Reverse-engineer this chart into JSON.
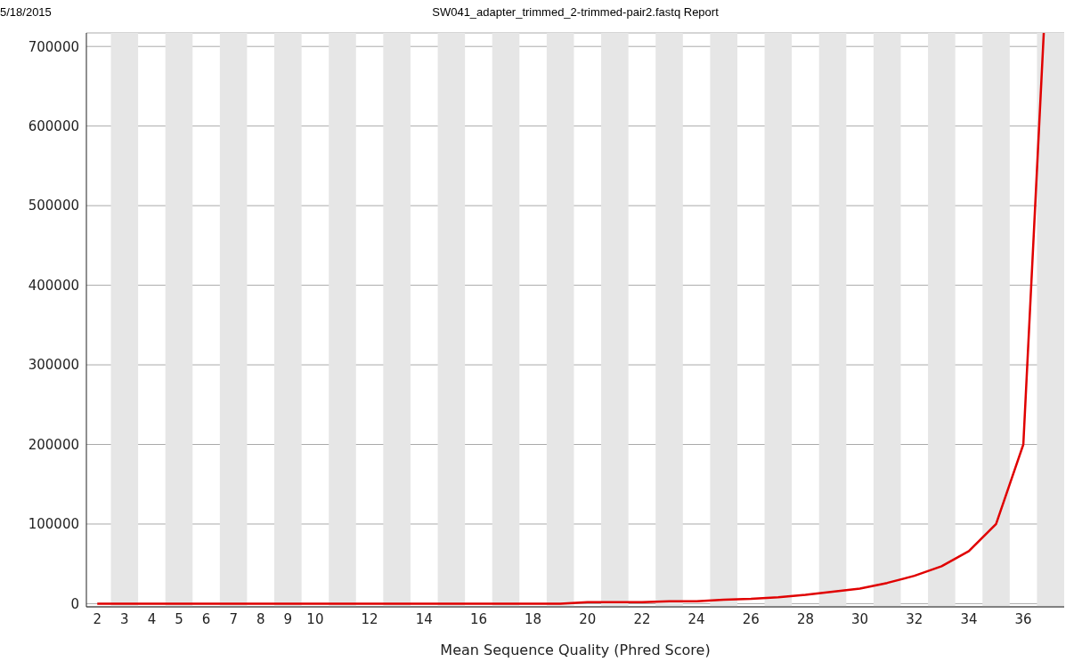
{
  "chart_data": {
    "type": "line",
    "title": "SW041_adapter_trimmed_2-trimmed-pair2.fastq Report",
    "xlabel": "Mean Sequence Quality (Phred Score)",
    "annotations": [
      "5/18/2015"
    ],
    "x": [
      2,
      3,
      4,
      5,
      6,
      7,
      8,
      9,
      10,
      11,
      12,
      13,
      14,
      15,
      16,
      17,
      18,
      19,
      20,
      21,
      22,
      23,
      24,
      25,
      26,
      27,
      28,
      29,
      30,
      31,
      32,
      33,
      34,
      35,
      36,
      36.75
    ],
    "series": [
      {
        "color": "#e00000",
        "values": [
          0,
          0,
          0,
          0,
          0,
          0,
          0,
          0,
          0,
          0,
          0,
          0,
          0,
          0,
          0,
          0,
          0,
          0,
          2000,
          2000,
          2000,
          3000,
          3000,
          5000,
          6000,
          8000,
          11000,
          15000,
          19000,
          26000,
          35000,
          47000,
          66000,
          100000,
          200000,
          717000
        ]
      }
    ],
    "xlim": [
      1.6,
      37.5
    ],
    "xticks": [
      2,
      3,
      4,
      5,
      6,
      7,
      8,
      9,
      10,
      12,
      14,
      16,
      18,
      20,
      22,
      24,
      26,
      28,
      30,
      32,
      34,
      36
    ],
    "ylim": [
      -4000,
      717000
    ],
    "yticks": [
      0,
      100000,
      200000,
      300000,
      400000,
      500000,
      600000,
      700000
    ],
    "grid": "y",
    "legend": false,
    "marker": "none",
    "line_style": "solid",
    "bands": [
      {
        "axis": "x",
        "from": 2.5,
        "to": 3.5,
        "color": "#e6e6e6"
      },
      {
        "axis": "x",
        "from": 4.5,
        "to": 5.5,
        "color": "#e6e6e6"
      },
      {
        "axis": "x",
        "from": 6.5,
        "to": 7.5,
        "color": "#e6e6e6"
      },
      {
        "axis": "x",
        "from": 8.5,
        "to": 9.5,
        "color": "#e6e6e6"
      },
      {
        "axis": "x",
        "from": 10.5,
        "to": 11.5,
        "color": "#e6e6e6"
      },
      {
        "axis": "x",
        "from": 12.5,
        "to": 13.5,
        "color": "#e6e6e6"
      },
      {
        "axis": "x",
        "from": 14.5,
        "to": 15.5,
        "color": "#e6e6e6"
      },
      {
        "axis": "x",
        "from": 16.5,
        "to": 17.5,
        "color": "#e6e6e6"
      },
      {
        "axis": "x",
        "from": 18.5,
        "to": 19.5,
        "color": "#e6e6e6"
      },
      {
        "axis": "x",
        "from": 20.5,
        "to": 21.5,
        "color": "#e6e6e6"
      },
      {
        "axis": "x",
        "from": 22.5,
        "to": 23.5,
        "color": "#e6e6e6"
      },
      {
        "axis": "x",
        "from": 24.5,
        "to": 25.5,
        "color": "#e6e6e6"
      },
      {
        "axis": "x",
        "from": 26.5,
        "to": 27.5,
        "color": "#e6e6e6"
      },
      {
        "axis": "x",
        "from": 28.5,
        "to": 29.5,
        "color": "#e6e6e6"
      },
      {
        "axis": "x",
        "from": 30.5,
        "to": 31.5,
        "color": "#e6e6e6"
      },
      {
        "axis": "x",
        "from": 32.5,
        "to": 33.5,
        "color": "#e6e6e6"
      },
      {
        "axis": "x",
        "from": 34.5,
        "to": 35.5,
        "color": "#e6e6e6"
      },
      {
        "axis": "x",
        "from": 36.5,
        "to": 37.5,
        "color": "#e6e6e6"
      }
    ]
  }
}
